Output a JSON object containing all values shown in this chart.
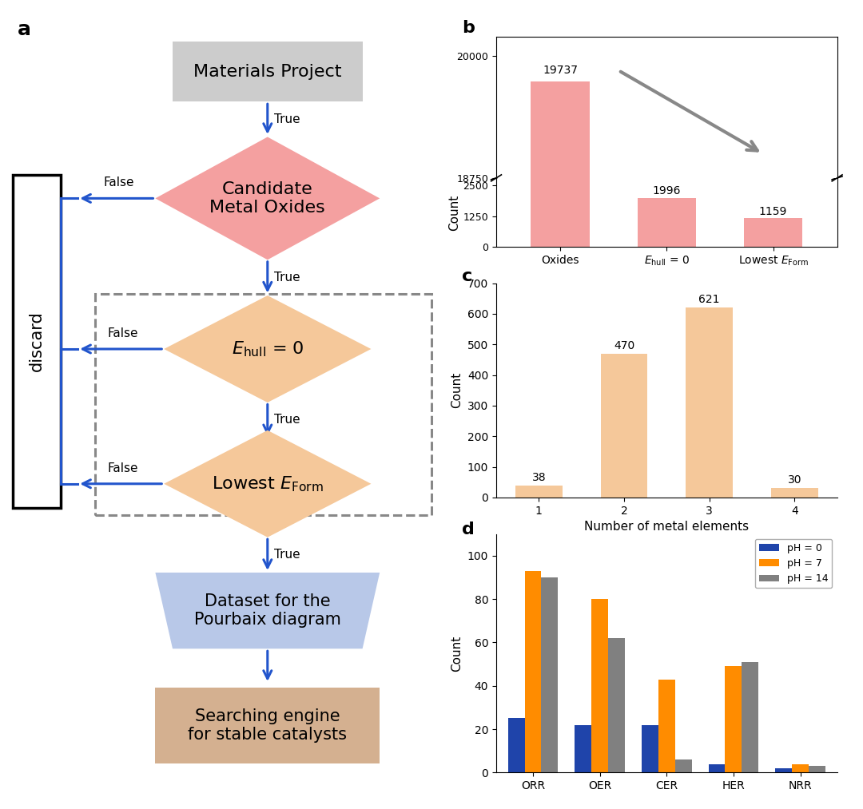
{
  "panel_b": {
    "categories": [
      "Oxides",
      "E_hull = 0",
      "Lowest E_Form"
    ],
    "values": [
      19737,
      1996,
      1159
    ],
    "bar_color": "#F4A0A0",
    "ylabel": "Count"
  },
  "panel_c": {
    "categories": [
      "1",
      "2",
      "3",
      "4"
    ],
    "values": [
      38,
      470,
      621,
      30
    ],
    "bar_color": "#F5C89A",
    "ylabel": "Count",
    "xlabel": "Number of metal elements",
    "yticks": [
      0,
      100,
      200,
      300,
      400,
      500,
      600,
      700
    ]
  },
  "panel_d": {
    "categories": [
      "ORR",
      "OER",
      "CER",
      "HER",
      "NRR"
    ],
    "ph0": [
      25,
      22,
      22,
      4,
      2
    ],
    "ph7": [
      93,
      80,
      43,
      49,
      4
    ],
    "ph14": [
      90,
      62,
      6,
      51,
      3
    ],
    "colors": [
      "#1f44aa",
      "#FF8C00",
      "#808080"
    ],
    "labels": [
      "pH = 0",
      "pH = 7",
      "pH = 14"
    ],
    "ylabel": "Count",
    "yticks": [
      0,
      20,
      40,
      60,
      80,
      100
    ]
  },
  "flowchart": {
    "arrow_color": "#2255CC",
    "mat_proj_color": "#CCCCCC",
    "candidate_color": "#F4A0A0",
    "ehull_color": "#F5C89A",
    "eform_color": "#F5C89A",
    "dataset_color": "#B8C8E8",
    "engine_color": "#D4B090"
  }
}
